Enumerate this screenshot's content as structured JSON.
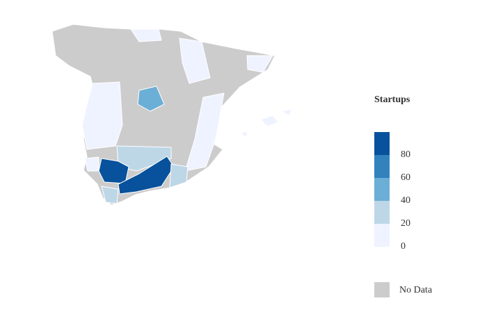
{
  "legend": {
    "title": "Startups",
    "ticks": [
      0,
      20,
      40,
      60,
      80
    ],
    "range": [
      0,
      100
    ],
    "colors": [
      "#eff3ff",
      "#bdd7e7",
      "#6baed6",
      "#3182bd",
      "#08519c"
    ]
  },
  "no_data": {
    "label": "No Data",
    "color": "#cccccc"
  }
}
